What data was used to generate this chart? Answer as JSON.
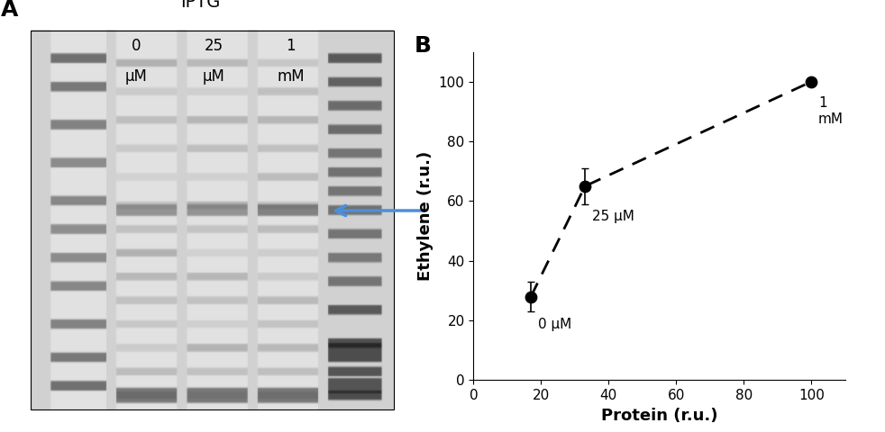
{
  "panel_B": {
    "x": [
      17,
      33,
      100
    ],
    "y": [
      28,
      65,
      100
    ],
    "yerr": [
      5,
      6,
      0
    ],
    "xlabel": "Protein (r.u.)",
    "ylabel": "Ethylene (r.u.)",
    "xlim": [
      0,
      110
    ],
    "ylim": [
      0,
      110
    ],
    "xticks": [
      0,
      20,
      40,
      60,
      80,
      100
    ],
    "yticks": [
      0,
      20,
      40,
      60,
      80,
      100
    ],
    "point_color": "black",
    "point_size": 80,
    "line_color": "black",
    "line_style": "--",
    "line_width": 2.0
  },
  "panel_A": {
    "title": "IPTG",
    "col_labels_line1": [
      "0",
      "25",
      "1"
    ],
    "col_labels_line2": [
      "μM",
      "μM",
      "mM"
    ],
    "arrow_color": "#4a90d9",
    "gel_bg": 0.82,
    "lane_bg": 0.88
  },
  "label_A_fontsize": 18,
  "label_B_fontsize": 18,
  "axis_fontsize": 12,
  "tick_fontsize": 11,
  "annotation_fontsize": 11
}
